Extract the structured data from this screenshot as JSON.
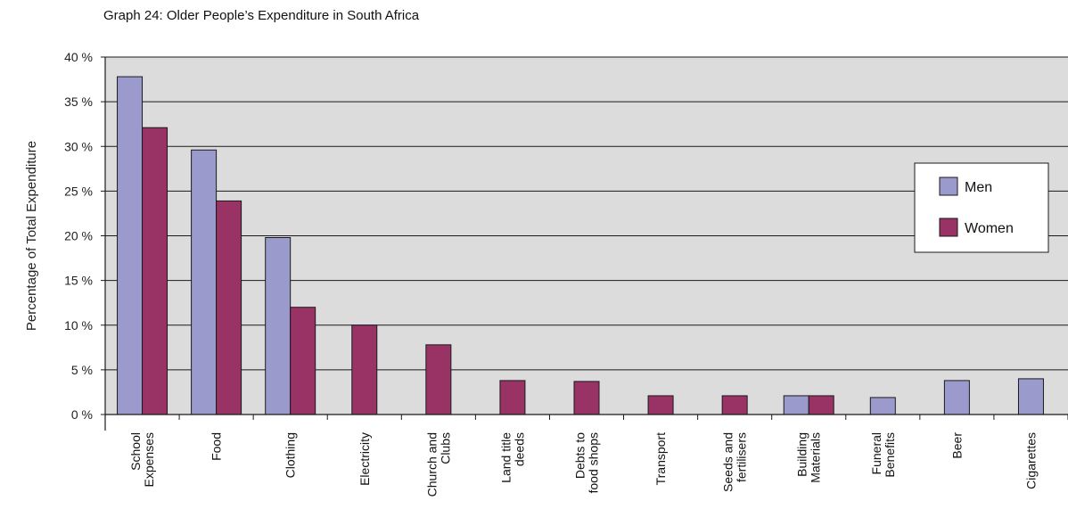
{
  "chart_data": {
    "type": "bar",
    "title": "Graph 24: Older People’s Expenditure in South Africa",
    "ylabel": "Percentage of Total Expenditure",
    "xlabel": "",
    "ylim": [
      0,
      40
    ],
    "yticks": [
      0,
      5,
      10,
      15,
      20,
      25,
      30,
      35,
      40
    ],
    "ytick_suffix": " %",
    "grid": true,
    "legend_position": "right",
    "categories": [
      [
        "School",
        "Expenses"
      ],
      [
        "Food"
      ],
      [
        "Clothing"
      ],
      [
        "Electricity"
      ],
      [
        "Church and",
        "Clubs"
      ],
      [
        "Land title",
        "deeds"
      ],
      [
        "Debts to",
        "food shops"
      ],
      [
        "Transport"
      ],
      [
        "Seeds and",
        "fertilisers"
      ],
      [
        "Building",
        "Materials"
      ],
      [
        "Funeral",
        "Benefits"
      ],
      [
        "Beer"
      ],
      [
        "Cigarettes"
      ]
    ],
    "series": [
      {
        "name": "Men",
        "color": "#9a9acc",
        "values": [
          37.8,
          29.6,
          19.8,
          null,
          null,
          null,
          null,
          null,
          null,
          2.1,
          1.9,
          3.8,
          4.0
        ]
      },
      {
        "name": "Women",
        "color": "#993366",
        "values": [
          32.1,
          23.9,
          12.0,
          10.0,
          7.8,
          3.8,
          3.7,
          2.1,
          2.1,
          2.1,
          null,
          null,
          null
        ]
      }
    ],
    "plot_background": "#dcdcdc"
  }
}
